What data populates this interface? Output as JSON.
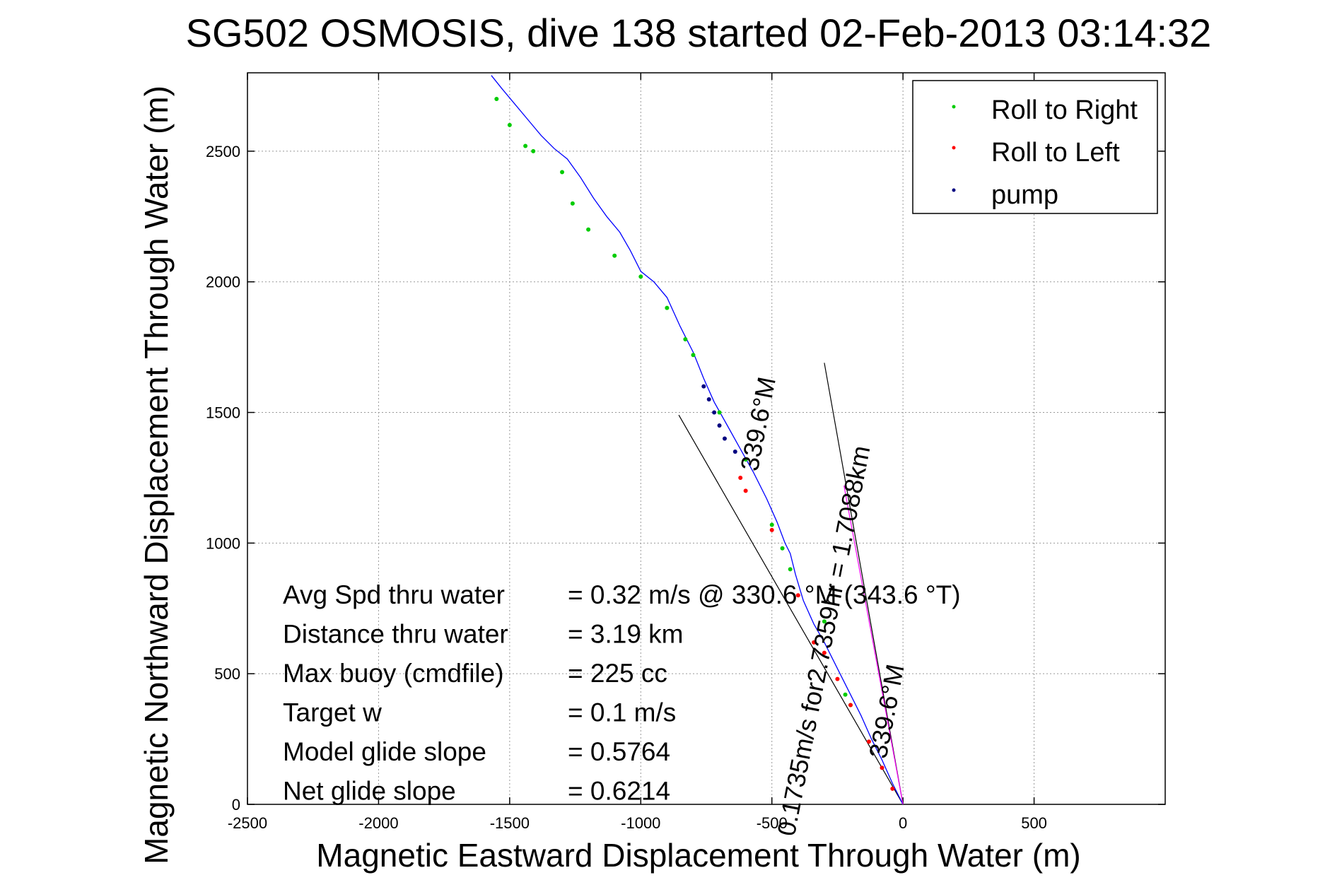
{
  "chart_data": {
    "type": "line",
    "title": "SG502 OSMOSIS, dive 138 started 02-Feb-2013 03:14:32",
    "xlabel": "Magnetic Eastward Displacement Through Water (m)",
    "ylabel": "Magnetic Northward Displacement Through Water (m)",
    "xlim": [
      -2500,
      1000
    ],
    "ylim": [
      0,
      2800
    ],
    "xticks": [
      -2500,
      -2000,
      -1500,
      -1000,
      -500,
      0,
      500
    ],
    "yticks": [
      0,
      500,
      1000,
      1500,
      2000,
      2500
    ],
    "grid": true,
    "legend_position": "top-right",
    "legend": [
      {
        "label": "Roll to Right",
        "color": "#00cc00"
      },
      {
        "label": "Roll to Left",
        "color": "#ff0000"
      },
      {
        "label": "pump",
        "color": "#000080"
      }
    ],
    "track": {
      "color": "#0000ff",
      "x": [
        0,
        -40,
        -80,
        -120,
        -160,
        -200,
        -250,
        -300,
        -340,
        -380,
        -410,
        -430,
        -450,
        -480,
        -520,
        -570,
        -620,
        -670,
        -720,
        -760,
        -800,
        -850,
        -900,
        -950,
        -1000,
        -1040,
        -1080,
        -1130,
        -1180,
        -1230,
        -1280,
        -1330,
        -1380,
        -1430,
        -1480,
        -1530,
        -1570
      ],
      "y": [
        0,
        80,
        170,
        250,
        340,
        420,
        520,
        620,
        690,
        780,
        880,
        960,
        1000,
        1080,
        1170,
        1270,
        1360,
        1450,
        1540,
        1630,
        1730,
        1830,
        1940,
        2000,
        2040,
        2120,
        2190,
        2250,
        2320,
        2400,
        2470,
        2510,
        2560,
        2620,
        2680,
        2740,
        2790
      ]
    },
    "roll_right_points": {
      "x": [
        -200,
        -220,
        -300,
        -430,
        -460,
        -500,
        -600,
        -700,
        -800,
        -830,
        -900,
        -1000,
        -1100,
        -1200,
        -1260,
        -1300,
        -1410,
        -1440,
        -1500,
        -1550
      ],
      "y": [
        380,
        420,
        700,
        900,
        980,
        1070,
        1320,
        1500,
        1720,
        1780,
        1900,
        2020,
        2100,
        2200,
        2300,
        2420,
        2500,
        2520,
        2600,
        2700
      ]
    },
    "roll_left_points": {
      "x": [
        -40,
        -80,
        -130,
        -200,
        -250,
        -300,
        -340,
        -400,
        -500,
        -600,
        -620
      ],
      "y": [
        60,
        140,
        240,
        380,
        480,
        580,
        620,
        800,
        1050,
        1200,
        1250
      ]
    },
    "pump_points": {
      "x": [
        -640,
        -680,
        -700,
        -720,
        -740,
        -760
      ],
      "y": [
        1350,
        1400,
        1450,
        1500,
        1550,
        1600
      ]
    },
    "target_line": {
      "color": "#ff00ff",
      "x": [
        0,
        -225
      ],
      "y": [
        0,
        1220
      ]
    },
    "cone_lines": [
      {
        "x": [
          0,
          -855
        ],
        "y": [
          0,
          1490
        ]
      },
      {
        "x": [
          0,
          -300
        ],
        "y": [
          0,
          1690
        ]
      }
    ],
    "annotations": [
      {
        "text": "0.1735m/s for2.7359hr = 1.7088km",
        "x": -270,
        "y": 620,
        "angle": -79
      },
      {
        "text": "339.6°M",
        "x": -30,
        "y": 350,
        "angle": -79
      },
      {
        "text": "339.6°M",
        "x": -520,
        "y": 1450,
        "angle": -79
      }
    ],
    "stats": [
      {
        "label": "Avg Spd thru water",
        "value": "=  0.32 m/s @ 330.6 °M (343.6 °T)"
      },
      {
        "label": "Distance thru water",
        "value": "=  3.19 km"
      },
      {
        "label": "Max buoy (cmdfile)",
        "value": "= 225 cc"
      },
      {
        "label": "Target w",
        "value": "= 0.1 m/s"
      },
      {
        "label": "Model glide slope",
        "value": "= 0.5764"
      },
      {
        "label": "Net glide slope",
        "value": "= 0.6214"
      }
    ]
  }
}
